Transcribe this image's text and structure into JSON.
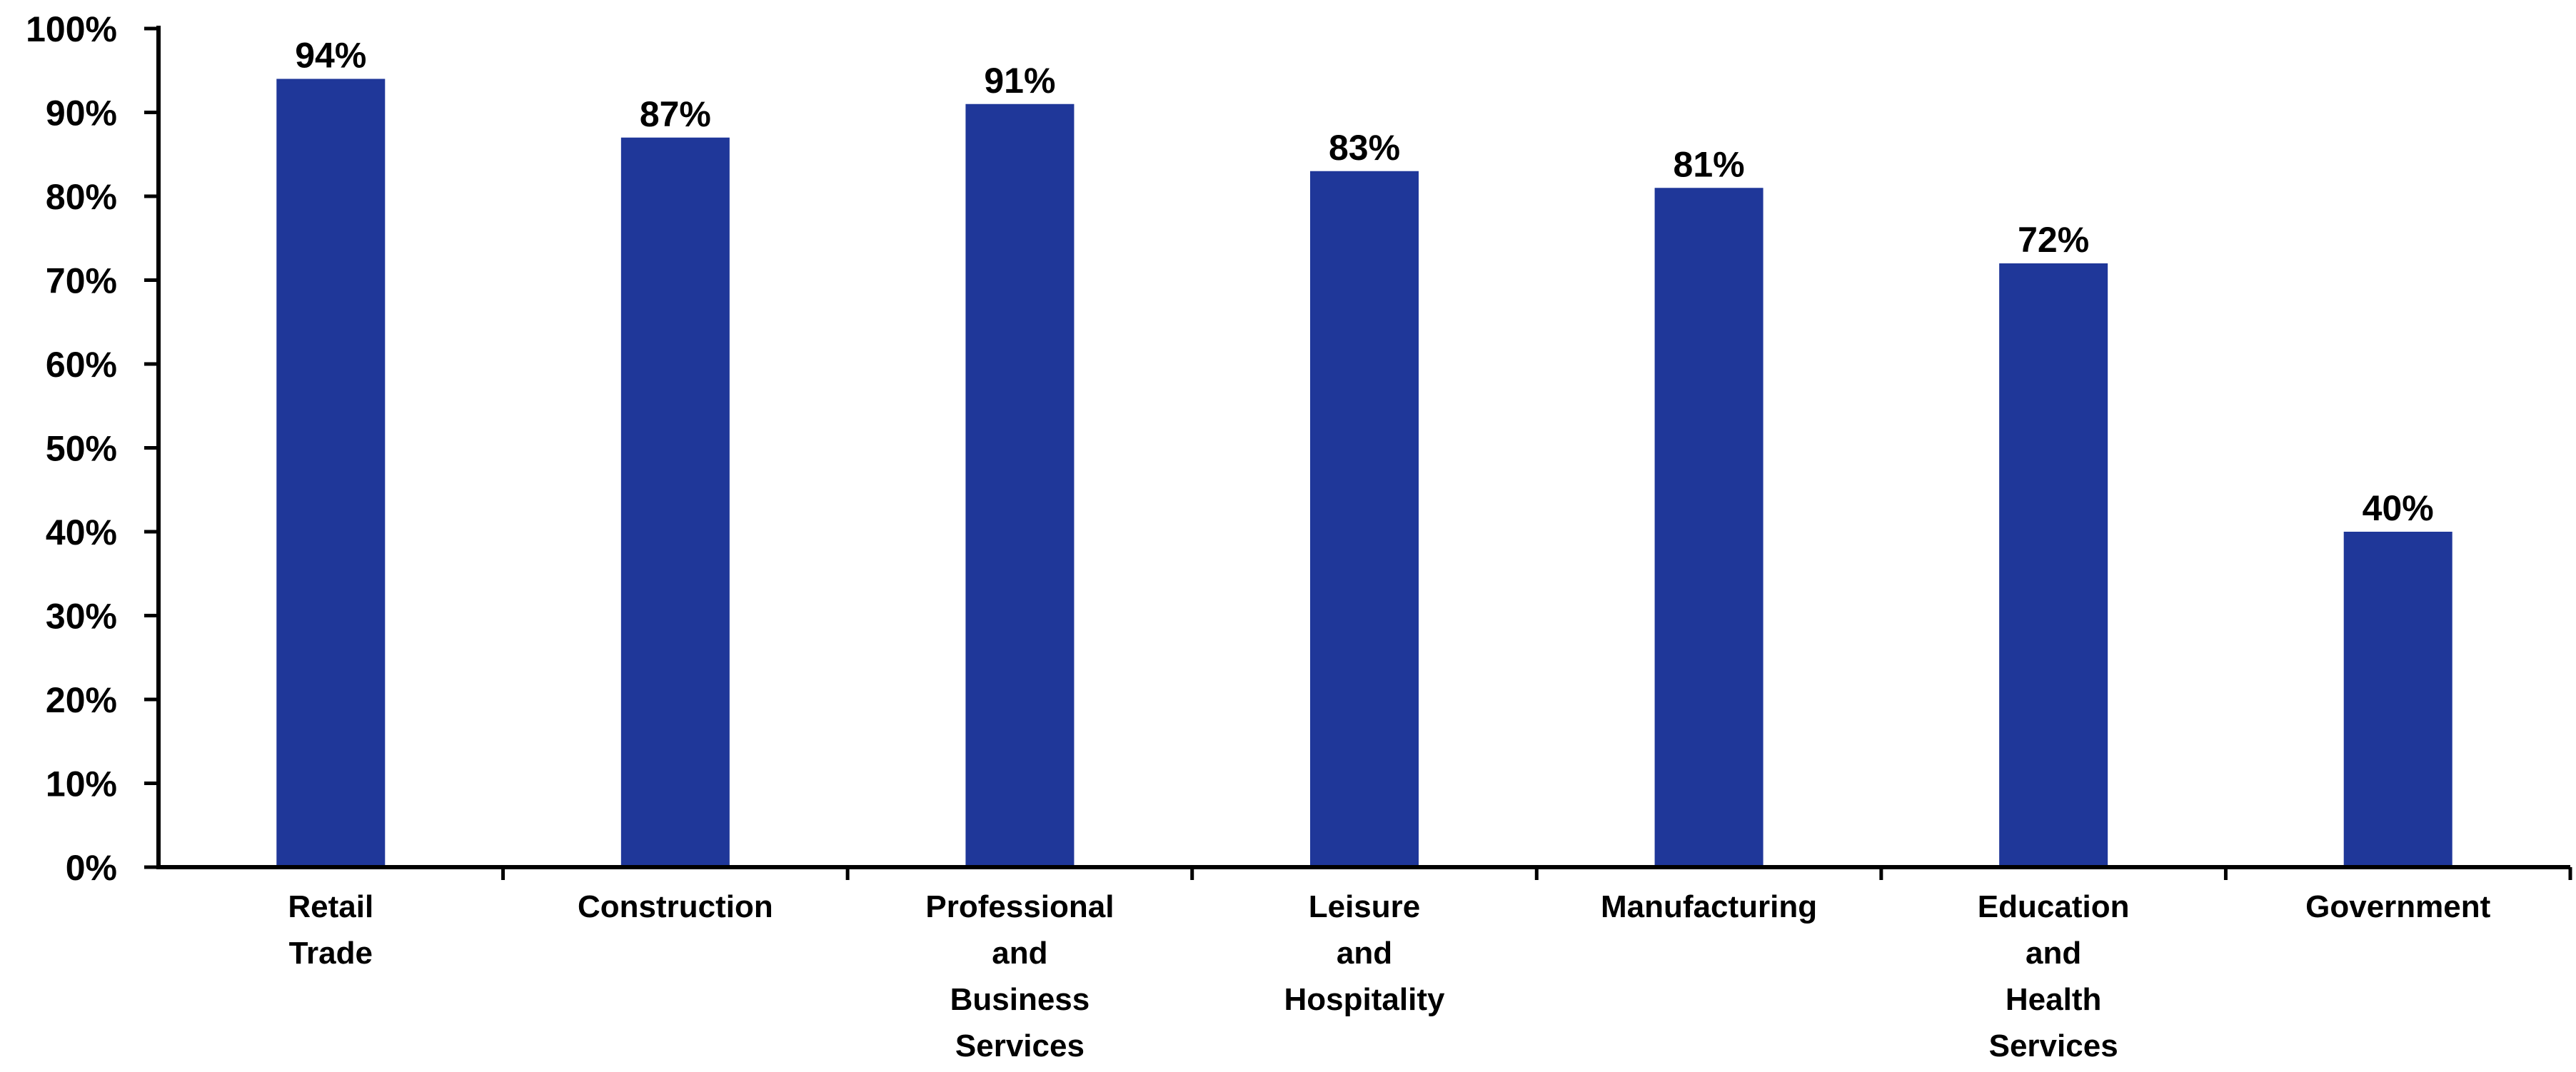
{
  "chart_data": {
    "type": "bar",
    "categories": [
      "Retail Trade",
      "Construction",
      "Professional and Business Services",
      "Leisure and Hospitality",
      "Manufacturing",
      "Education and Health Services",
      "Government"
    ],
    "category_lines": [
      [
        "Retail",
        "Trade"
      ],
      [
        "Construction"
      ],
      [
        "Professional",
        "and",
        "Business",
        "Services"
      ],
      [
        "Leisure",
        "and",
        "Hospitality"
      ],
      [
        "Manufacturing"
      ],
      [
        "Education",
        "and",
        "Health",
        "Services"
      ],
      [
        "Government"
      ]
    ],
    "values": [
      94,
      87,
      91,
      83,
      81,
      72,
      40
    ],
    "data_labels": [
      "94%",
      "87%",
      "91%",
      "83%",
      "81%",
      "72%",
      "40%"
    ],
    "title": "",
    "xlabel": "",
    "ylabel": "",
    "ylim": [
      0,
      100
    ],
    "yticks": [
      0,
      10,
      20,
      30,
      40,
      50,
      60,
      70,
      80,
      90,
      100
    ],
    "ytick_labels": [
      "0%",
      "10%",
      "20%",
      "30%",
      "40%",
      "50%",
      "60%",
      "70%",
      "80%",
      "90%",
      "100%"
    ],
    "grid": false,
    "legend": "none",
    "bar_color": "#1F3799",
    "axis_color": "#000000"
  }
}
